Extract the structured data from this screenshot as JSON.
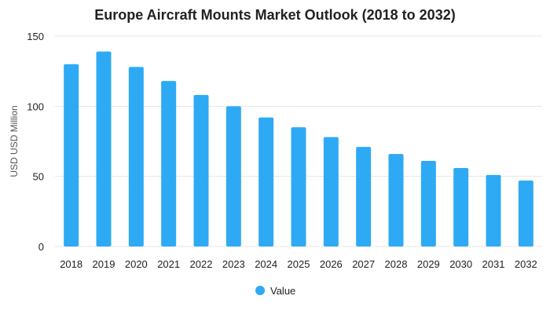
{
  "chart_data": {
    "type": "bar",
    "title": "Europe Aircraft Mounts Market Outlook (2018 to 2032)",
    "xlabel": "",
    "ylabel": "USD USD Million",
    "categories": [
      "2018",
      "2019",
      "2020",
      "2021",
      "2022",
      "2023",
      "2024",
      "2025",
      "2026",
      "2027",
      "2028",
      "2029",
      "2030",
      "2031",
      "2032"
    ],
    "series": [
      {
        "name": "Value",
        "color": "#2eaaf5",
        "values": [
          130,
          139,
          128,
          118,
          108,
          100,
          92,
          85,
          78,
          71,
          66,
          61,
          56,
          51,
          47
        ]
      }
    ],
    "ylim": [
      0,
      150
    ],
    "yticks": [
      "0",
      "50",
      "100",
      "150"
    ],
    "grid": true,
    "legend": "bottom-center"
  }
}
